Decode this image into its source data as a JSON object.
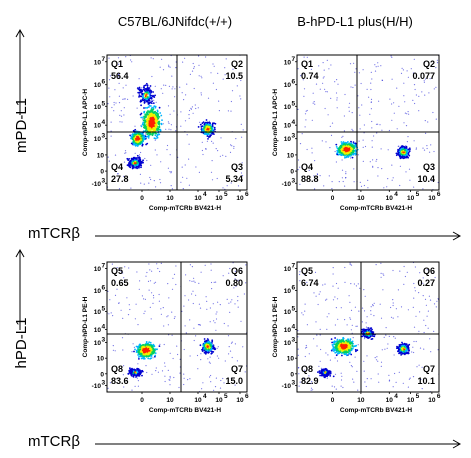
{
  "column_titles": [
    "C57BL/6JNifdc(+/+)",
    "B-hPD-L1 plus(H/H)"
  ],
  "rows": [
    {
      "y_label": "mPD-L1",
      "x_label": "mTCRβ"
    },
    {
      "y_label": "hPD-L1",
      "x_label": "mTCRβ"
    }
  ],
  "colors": {
    "low": "#0000d0",
    "mid1": "#00b4ff",
    "mid2": "#00d060",
    "mid3": "#f0f000",
    "high": "#ff2000",
    "gate": "#000000"
  },
  "chart_data": [
    {
      "type": "scatter",
      "title": "C57BL/6JNifdc(+/+)",
      "xlabel": "Comp-mTCRb BV421-H",
      "ylabel": "Comp-mPD-L1 APC-H",
      "x_ticks": [
        "0",
        "10",
        "10",
        "10",
        "10"
      ],
      "x_ticks_exp": [
        "",
        "",
        "4",
        "5",
        "6"
      ],
      "y_ticks": [
        "10",
        "10",
        "10",
        "10",
        "10",
        "10",
        "0",
        "-10"
      ],
      "y_ticks_exp": [
        "7",
        "6",
        "5",
        "4",
        "3",
        "",
        "",
        "3"
      ],
      "quadrants": [
        {
          "name": "Q1",
          "value": 56.4
        },
        {
          "name": "Q2",
          "value": 10.5
        },
        {
          "name": "Q3",
          "value": 5.34
        },
        {
          "name": "Q4",
          "value": 27.8
        }
      ]
    },
    {
      "type": "scatter",
      "title": "B-hPD-L1 plus(H/H)",
      "xlabel": "Comp-mTCRb BV421-H",
      "ylabel": "Comp-mPD-L1 APC-H",
      "x_ticks": [
        "0",
        "10",
        "10",
        "10",
        "10"
      ],
      "x_ticks_exp": [
        "",
        "",
        "4",
        "5",
        "6"
      ],
      "y_ticks": [
        "10",
        "10",
        "10",
        "10",
        "10",
        "10",
        "0",
        "-10"
      ],
      "y_ticks_exp": [
        "7",
        "6",
        "5",
        "4",
        "3",
        "",
        "",
        "3"
      ],
      "quadrants": [
        {
          "name": "Q1",
          "value": 0.74
        },
        {
          "name": "Q2",
          "value": 0.077
        },
        {
          "name": "Q3",
          "value": 10.4
        },
        {
          "name": "Q4",
          "value": 88.8
        }
      ]
    },
    {
      "type": "scatter",
      "title": "C57BL/6JNifdc(+/+)",
      "xlabel": "Comp-mTCRb BV421-H",
      "ylabel": "Comp-hPD-L1 PE-H",
      "x_ticks": [
        "0",
        "10",
        "10",
        "10",
        "10"
      ],
      "x_ticks_exp": [
        "",
        "",
        "4",
        "5",
        "6"
      ],
      "y_ticks": [
        "10",
        "10",
        "10",
        "10",
        "10",
        "10",
        "0",
        "-10"
      ],
      "y_ticks_exp": [
        "7",
        "6",
        "5",
        "4",
        "3",
        "",
        "",
        "3"
      ],
      "quadrants": [
        {
          "name": "Q5",
          "value": 0.65
        },
        {
          "name": "Q6",
          "value": 0.8
        },
        {
          "name": "Q7",
          "value": 15.0
        },
        {
          "name": "Q8",
          "value": 83.6
        }
      ]
    },
    {
      "type": "scatter",
      "title": "B-hPD-L1 plus(H/H)",
      "xlabel": "Comp-mTCRb BV421-H",
      "ylabel": "Comp-hPD-L1 PE-H",
      "x_ticks": [
        "0",
        "10",
        "10",
        "10",
        "10"
      ],
      "x_ticks_exp": [
        "",
        "",
        "4",
        "5",
        "6"
      ],
      "y_ticks": [
        "10",
        "10",
        "10",
        "10",
        "10",
        "10",
        "0",
        "-10"
      ],
      "y_ticks_exp": [
        "7",
        "6",
        "5",
        "4",
        "3",
        "",
        "",
        "3"
      ],
      "quadrants": [
        {
          "name": "Q5",
          "value": 6.74
        },
        {
          "name": "Q6",
          "value": 0.27
        },
        {
          "name": "Q7",
          "value": 10.1
        },
        {
          "name": "Q8",
          "value": 82.9
        }
      ]
    }
  ],
  "quadrant_value_formats": [
    [
      "56.4",
      "10.5",
      "5.34",
      "27.8"
    ],
    [
      "0.74",
      "0.077",
      "10.4",
      "88.8"
    ],
    [
      "0.65",
      "0.80",
      "15.0",
      "83.6"
    ],
    [
      "6.74",
      "0.27",
      "10.1",
      "82.9"
    ]
  ]
}
